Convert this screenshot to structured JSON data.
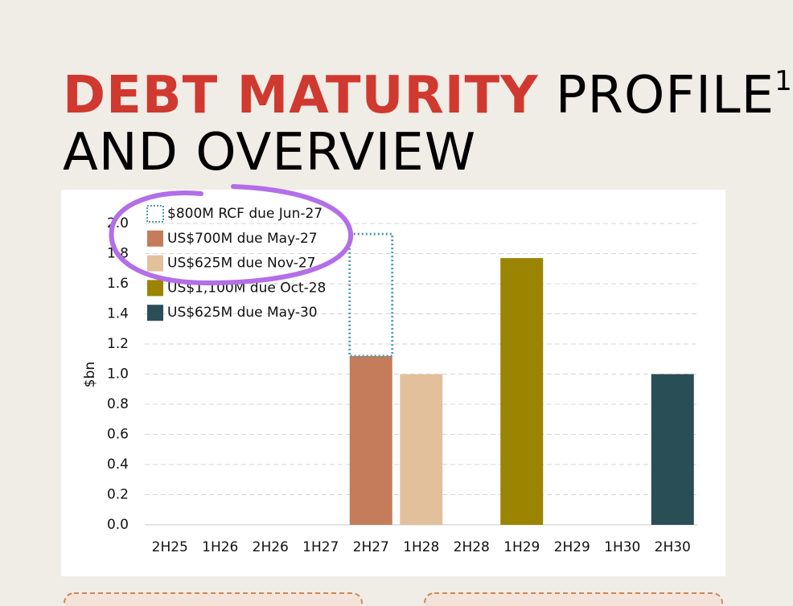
{
  "slide": {
    "title_highlight": "DEBT MATURITY",
    "title_rest": "PROFILE",
    "title_superscript": "1",
    "title_line2": "AND OVERVIEW"
  },
  "chart_data": {
    "type": "bar",
    "stacked": true,
    "y_label": "$bn",
    "categories": [
      "2H25",
      "1H26",
      "2H26",
      "1H27",
      "2H27",
      "1H28",
      "2H28",
      "1H29",
      "2H29",
      "1H30",
      "2H30"
    ],
    "series": [
      {
        "name": "$800M RCF due Jun-27",
        "color": "#4a9ea5",
        "dotted": true,
        "values": [
          null,
          null,
          null,
          null,
          0.81,
          null,
          null,
          null,
          null,
          null,
          null
        ]
      },
      {
        "name": "US$700M due May-27",
        "color": "#c47c5a",
        "values": [
          null,
          null,
          null,
          null,
          1.12,
          null,
          null,
          null,
          null,
          null,
          null
        ]
      },
      {
        "name": "US$625M due Nov-27",
        "color": "#e2c09c",
        "values": [
          null,
          null,
          null,
          null,
          null,
          1.0,
          null,
          null,
          null,
          null,
          null
        ]
      },
      {
        "name": "US$1,100M due Oct-28",
        "color": "#9a8400",
        "values": [
          null,
          null,
          null,
          null,
          null,
          null,
          null,
          1.77,
          null,
          null,
          null
        ]
      },
      {
        "name": "US$625M due May-30",
        "color": "#2a4e55",
        "values": [
          null,
          null,
          null,
          null,
          null,
          null,
          null,
          null,
          null,
          null,
          1.0
        ]
      }
    ],
    "ylim": [
      0,
      2.0
    ],
    "yticks": [
      {
        "value": 0,
        "label": "0.0"
      },
      0.2,
      0.4,
      0.6,
      0.8,
      {
        "value": 1,
        "label": "1.0"
      },
      1.2,
      1.4,
      1.6,
      1.8,
      {
        "value": 2,
        "label": "2.0"
      }
    ],
    "grid": true
  }
}
